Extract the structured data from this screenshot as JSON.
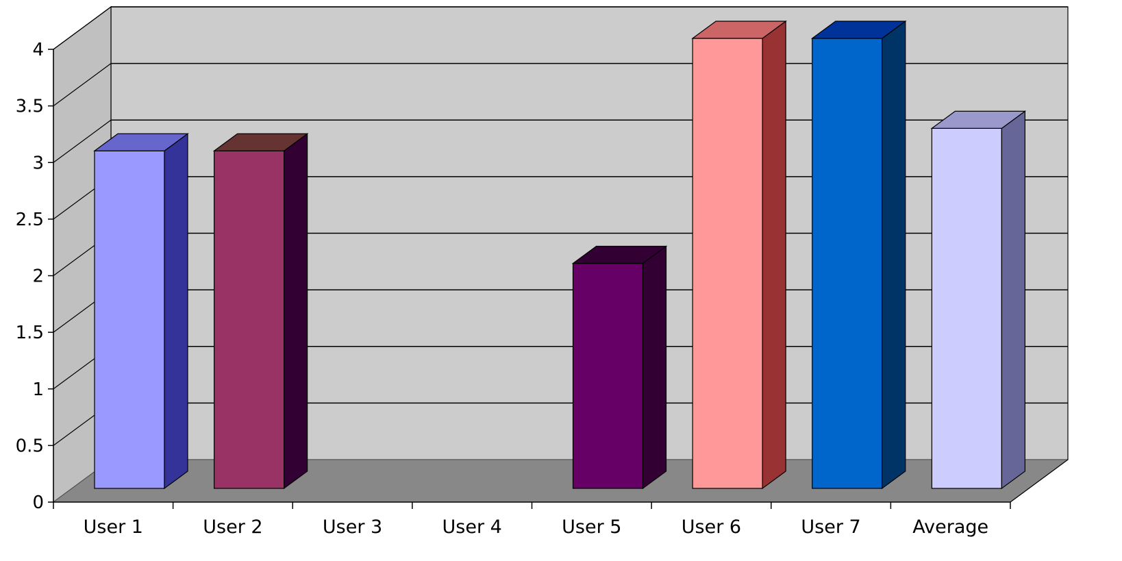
{
  "chart_data": {
    "type": "bar",
    "style": "3d-column",
    "categories": [
      "User 1",
      "User 2",
      "User 3",
      "User 4",
      "User 5",
      "User 6",
      "User 7",
      "Average"
    ],
    "values": [
      3,
      3,
      null,
      null,
      2,
      4,
      4,
      3.2
    ],
    "ylim": [
      0,
      4
    ],
    "yticks": [
      "0",
      "0.5",
      "1",
      "1.5",
      "2",
      "2.5",
      "3",
      "3.5",
      "4"
    ],
    "grid": true,
    "legend": "none",
    "title": "",
    "xlabel": "",
    "ylabel": ""
  },
  "colors": {
    "wall": "#cccccc",
    "side_wall": "#c0c0c0",
    "floor": "#888888",
    "gridline": "#000000",
    "bars": [
      {
        "front": "#9999ff",
        "side": "#333399",
        "top": "#6666cc"
      },
      {
        "front": "#993366",
        "side": "#330033",
        "top": "#663333"
      },
      {
        "front": "#ffffcc",
        "side": "#999966",
        "top": "#cccc99"
      },
      {
        "front": "#ccffff",
        "side": "#669999",
        "top": "#99cccc"
      },
      {
        "front": "#660066",
        "side": "#330033",
        "top": "#330033"
      },
      {
        "front": "#ff9999",
        "side": "#993333",
        "top": "#cc6666"
      },
      {
        "front": "#0066cc",
        "side": "#003366",
        "top": "#003399"
      },
      {
        "front": "#ccccff",
        "side": "#666699",
        "top": "#9999cc"
      }
    ]
  }
}
